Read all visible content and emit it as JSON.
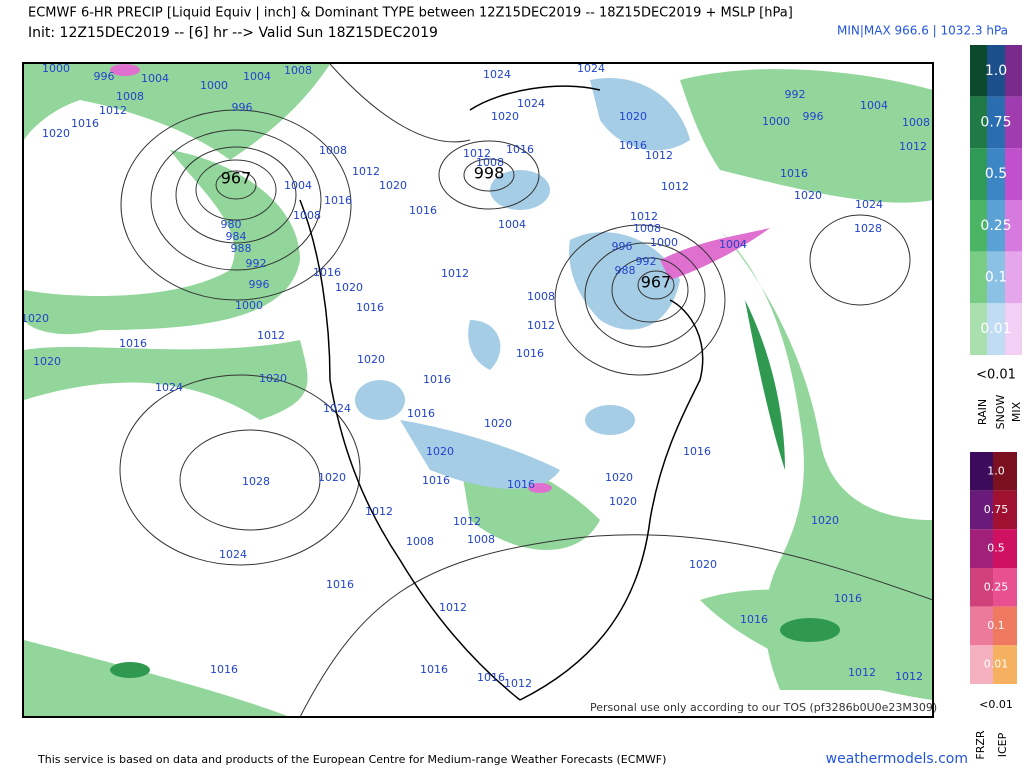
{
  "header": {
    "title": "ECMWF 6-HR PRECIP [Liquid Equiv | inch] & Dominant TYPE between 12Z15DEC2019 -- 18Z15DEC2019 + MSLP [hPa]",
    "subtitle": "Init: 12Z15DEC2019 -- [6] hr --> Valid Sun 18Z15DEC2019",
    "minmax": "MIN|MAX 966.6 | 1032.3 hPa"
  },
  "legend": {
    "rain_snow_mix": {
      "levels": [
        "1.0",
        "0.75",
        "0.5",
        "0.25",
        "0.1",
        "0.01"
      ],
      "below": "<0.01",
      "types": [
        "RAIN",
        "SNOW",
        "MIX"
      ]
    },
    "frzr_icep": {
      "levels": [
        "1.0",
        "0.75",
        "0.5",
        "0.25",
        "0.1",
        "0.01"
      ],
      "below": "<0.01",
      "types": [
        "FRZR",
        "ICEP"
      ]
    }
  },
  "map": {
    "low_centers": [
      "967",
      "998",
      "967"
    ],
    "isobar_labels": [
      "1000",
      "996",
      "1004",
      "1008",
      "1012",
      "1016",
      "1020",
      "1000",
      "996",
      "1004",
      "1008",
      "1008",
      "1012",
      "1020",
      "1004",
      "1008",
      "1016",
      "980",
      "984",
      "988",
      "992",
      "996",
      "1000",
      "1012",
      "1016",
      "1020",
      "1020",
      "1024",
      "1020",
      "1028",
      "1024",
      "1016",
      "1024",
      "1024",
      "1024",
      "1020",
      "1012",
      "1008",
      "1016",
      "1016",
      "1012",
      "1016",
      "1020",
      "1016",
      "1008",
      "1012",
      "1016",
      "1020",
      "1016",
      "1024",
      "1016",
      "1020",
      "1020",
      "1020",
      "1016",
      "1016",
      "1012",
      "1012",
      "1008",
      "1008",
      "1016",
      "1012",
      "1016",
      "1016",
      "1012",
      "1020",
      "1020",
      "1016",
      "1020",
      "1020",
      "1016",
      "1016",
      "1012",
      "1012",
      "992",
      "996",
      "1000",
      "1004",
      "1008",
      "1012",
      "1016",
      "1020",
      "1024",
      "1028",
      "1020",
      "1016",
      "1012",
      "1012",
      "1012",
      "1008",
      "1000",
      "996",
      "992",
      "988",
      "1004",
      "1004"
    ],
    "watermark": "Personal use only according to our TOS (pf3286b0U0e23M309)"
  },
  "footer": {
    "credit": "This service is based on data and products of the European Centre for Medium-range Weather Forecasts (ECMWF)",
    "site": "weathermodels.com"
  }
}
